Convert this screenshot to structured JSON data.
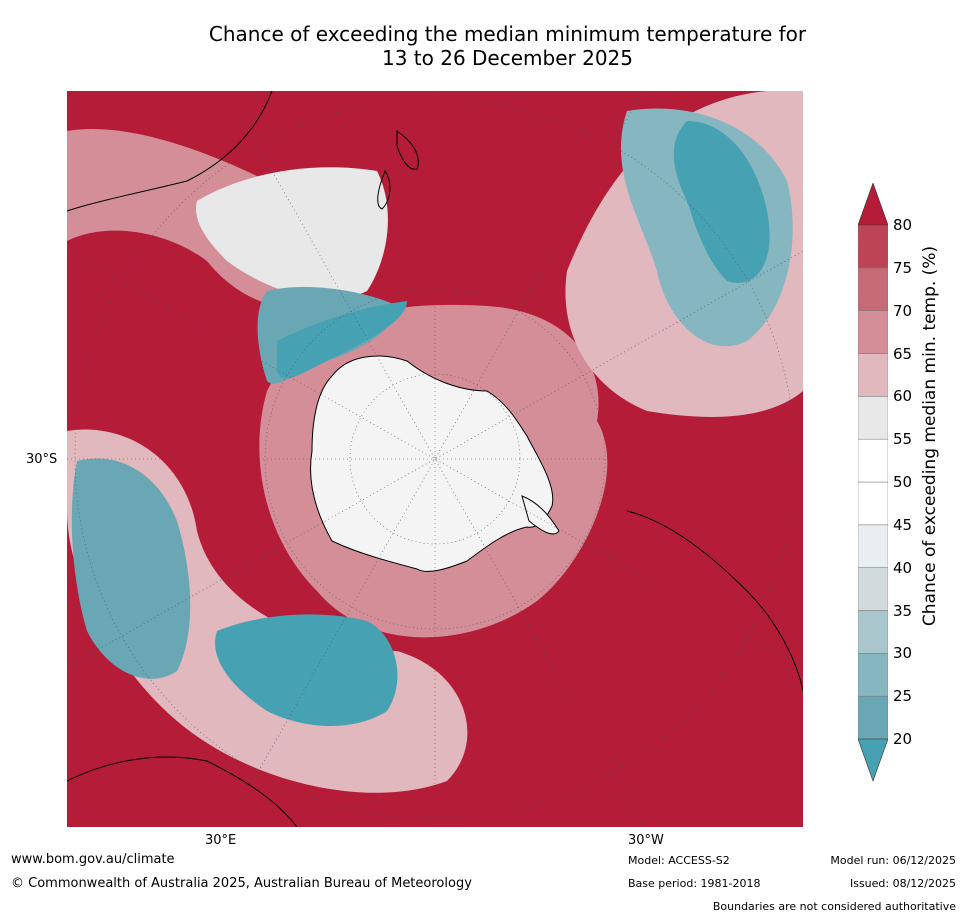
{
  "title": {
    "line1": "Chance of exceeding the median minimum temperature for",
    "line2": "13 to 26 December 2025"
  },
  "map": {
    "projection": "south polar stereographic",
    "labels": {
      "lat_30s": "30°S",
      "lon_30e": "30°E",
      "lon_30w": "30°W"
    },
    "colors": {
      "ocean_high": "#b51c38",
      "antarctica": "#f4f4f4",
      "coast": "#000000"
    }
  },
  "legend": {
    "title": "Chance of exceeding median min. temp. (%)",
    "ticks": [
      "20",
      "25",
      "30",
      "35",
      "40",
      "45",
      "50",
      "55",
      "60",
      "65",
      "70",
      "75",
      "80"
    ],
    "colors": [
      "#68a7b3",
      "#86b6c0",
      "#a8c6cc",
      "#d1dadc",
      "#e9eef0",
      "#ffffff",
      "#ffffff",
      "#e8e8e8",
      "#e0b8be",
      "#d38e98",
      "#c66a76",
      "#bc4454",
      "#b51c38"
    ],
    "extend_low_color": "#46a1b2",
    "extend_high_color": "#b51c38"
  },
  "footer": {
    "website": "www.bom.gov.au/climate",
    "copyright": "© Commonwealth of Australia 2025, Australian Bureau of Meteorology",
    "model": "Model: ACCESS-S2",
    "base_period": "Base period: 1981-2018",
    "model_run": "Model run: 06/12/2025",
    "issued": "Issued: 08/12/2025",
    "disclaimer": "Boundaries are not considered authoritative"
  }
}
